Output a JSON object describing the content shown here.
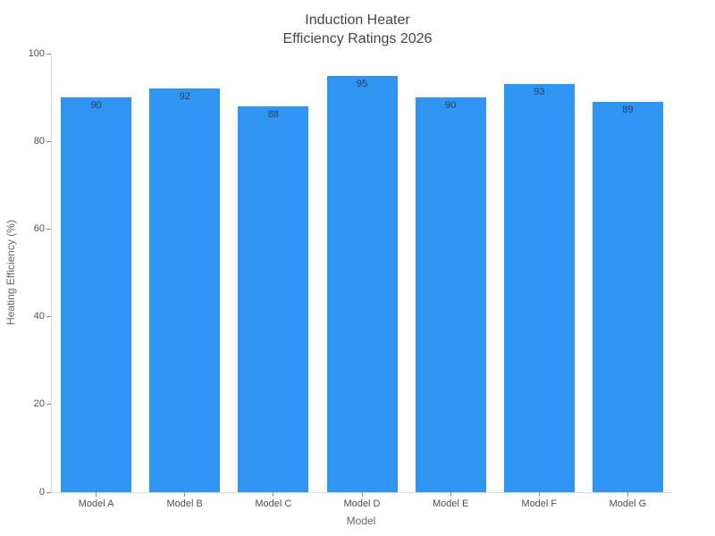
{
  "title": {
    "line1": "Induction Heater",
    "line2": "Efficiency Ratings 2026"
  },
  "axes": {
    "x_title": "Model",
    "y_title": "Heating Efficiency (%)"
  },
  "chart_data": {
    "type": "bar",
    "title": "Induction Heater\nEfficiency Ratings 2026",
    "categories": [
      "Model A",
      "Model B",
      "Model C",
      "Model D",
      "Model E",
      "Model F",
      "Model G"
    ],
    "values": [
      90,
      92,
      88,
      95,
      90,
      93,
      89
    ],
    "xlabel": "Model",
    "ylabel": "Heating Efficiency (%)",
    "ylim": [
      0,
      100
    ],
    "yticks": [
      0,
      20,
      40,
      60,
      80,
      100
    ],
    "grid": false,
    "legend": "none",
    "bar_value_labels": "inside-top",
    "colors": {
      "bar_fill": "#3094F3",
      "bar_label": "#2a3f5f",
      "tick_label": "#4c4f54",
      "axis_title": "#65686d",
      "chart_title": "#42454a",
      "axis_line": "#dcdcdc",
      "tick_mark": "#8c8c8c",
      "background": "#ffffff"
    }
  }
}
